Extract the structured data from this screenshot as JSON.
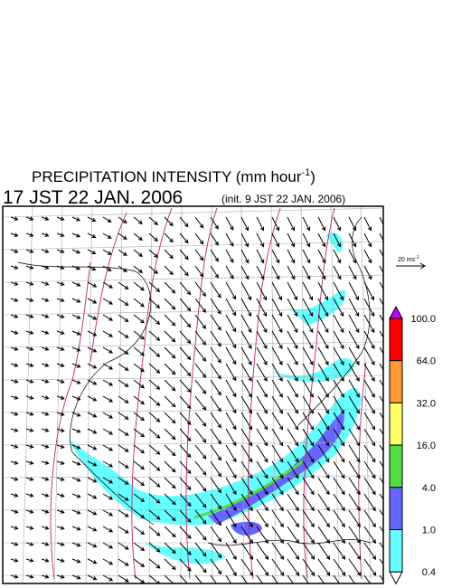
{
  "header": {
    "title": "PRECIPITATION INTENSITY (mm hour",
    "title_sup": "-1",
    "title_end": ")",
    "time": "17 JST 22 JAN. 2006",
    "init": "(init. 9 JST 22 JAN. 2006)"
  },
  "wind_scale": {
    "label": "20 ms",
    "sup": "-1"
  },
  "colorbar": {
    "labels": [
      "100.0",
      "64.0",
      "32.0",
      "16.0",
      "4.0",
      "1.0",
      "0.4"
    ],
    "colors": [
      "#c000ff",
      "#ff0000",
      "#ff9933",
      "#ffff66",
      "#55dd44",
      "#6666ff",
      "#66ffff",
      "#ffffff"
    ]
  }
}
